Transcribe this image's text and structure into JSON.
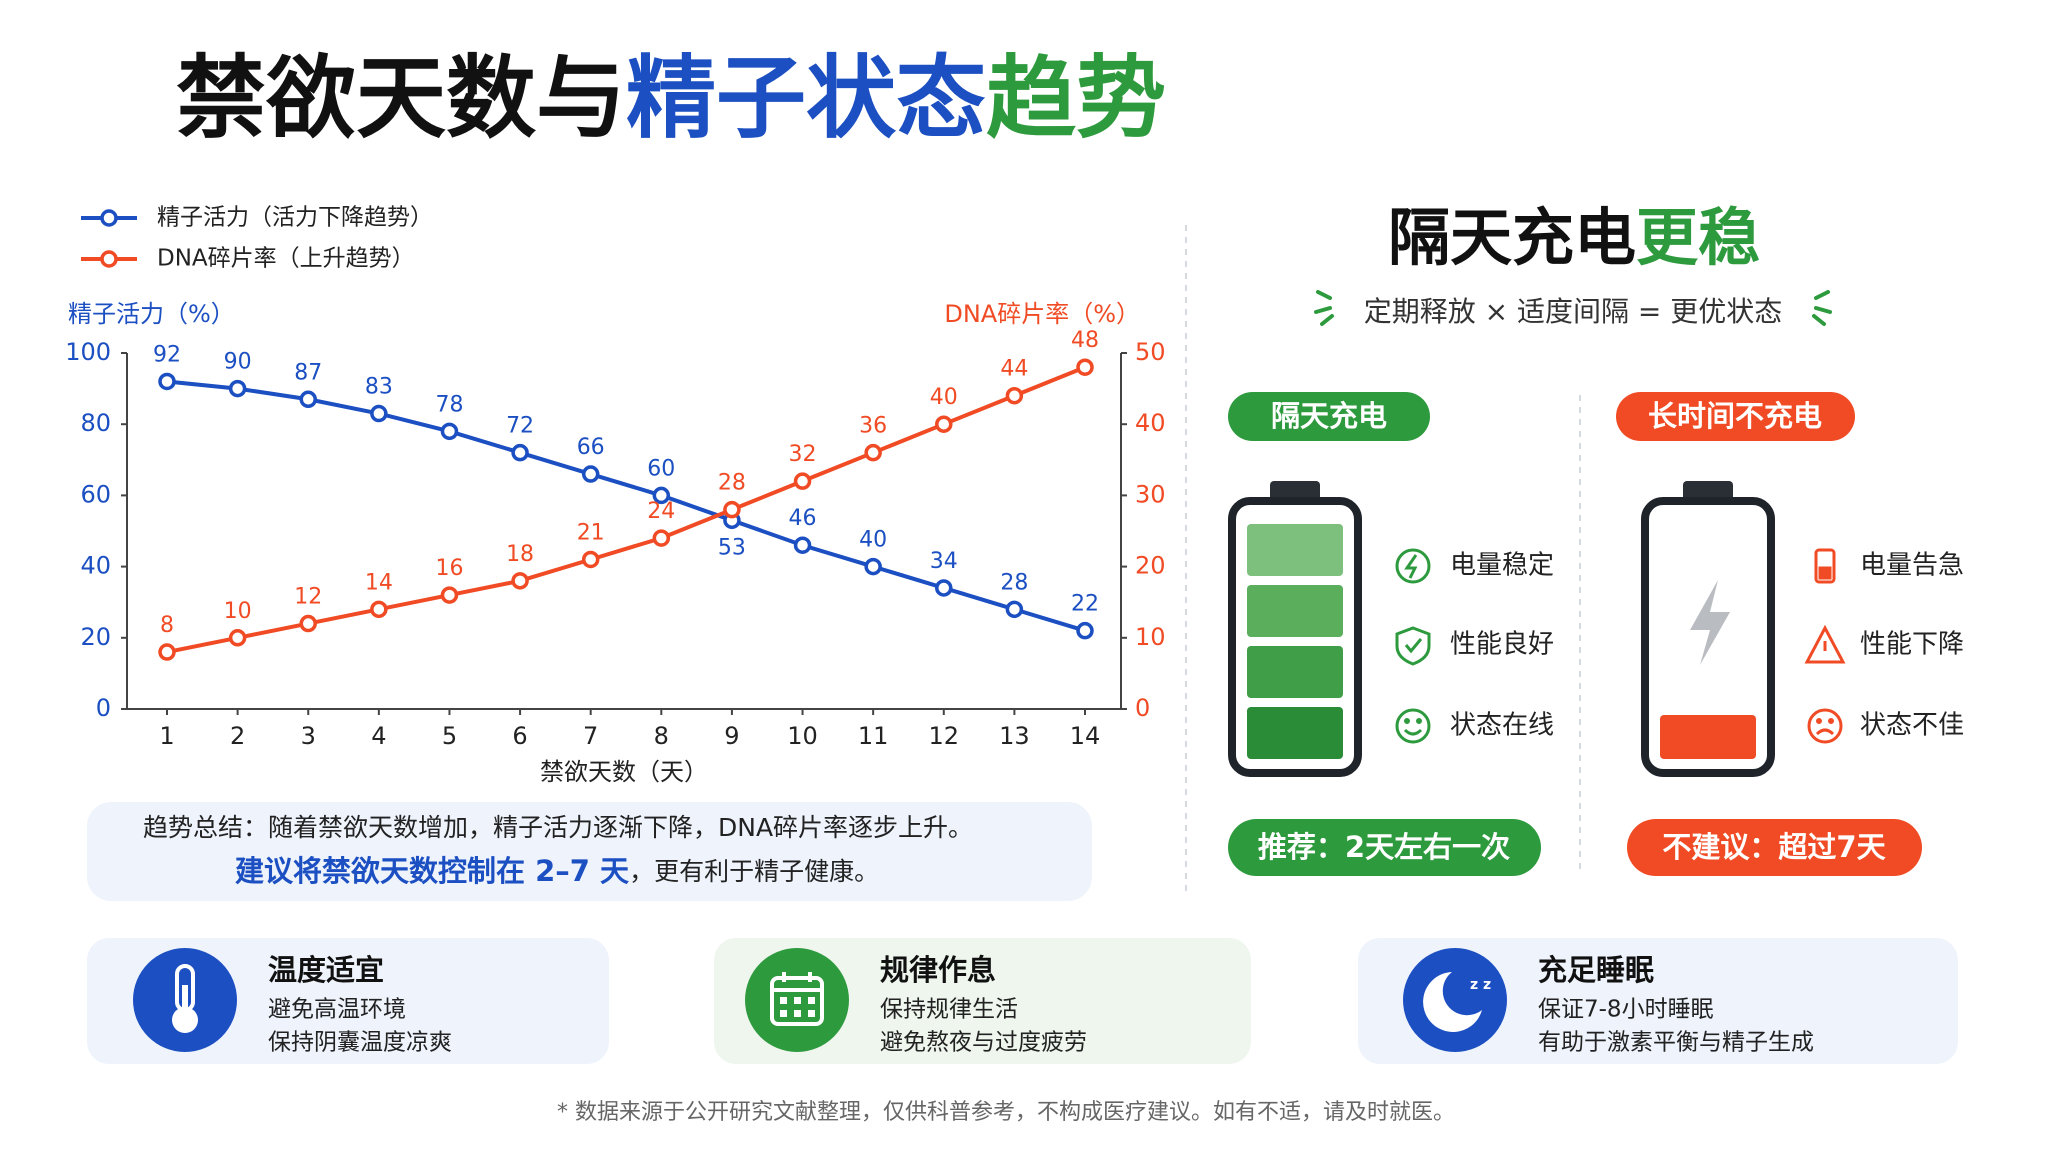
{
  "title": {
    "part1": "禁欲天数与",
    "part2": "精子状态",
    "part3": "趋势"
  },
  "chart_data": {
    "type": "line",
    "categories": [
      "1",
      "2",
      "3",
      "4",
      "5",
      "6",
      "7",
      "8",
      "9",
      "10",
      "11",
      "12",
      "13",
      "14"
    ],
    "series": [
      {
        "name": "精子活力（活力下降趋势）",
        "color": "#1b4fc2",
        "values": [
          92,
          90,
          87,
          83,
          78,
          72,
          66,
          60,
          53,
          46,
          40,
          34,
          28,
          22
        ]
      },
      {
        "name": "DNA碎片率（上升趋势）",
        "color": "#f04b24",
        "axis": "y2",
        "values": [
          8,
          10,
          12,
          14,
          16,
          18,
          21,
          24,
          28,
          32,
          36,
          40,
          44,
          48
        ]
      }
    ],
    "ylabel": "精子活力（%）",
    "y2label": "DNA碎片率（%）",
    "xlabel": "禁欲天数（天）",
    "ylim": [
      0,
      100
    ],
    "yticks": [
      0,
      20,
      40,
      60,
      80,
      100
    ],
    "y2lim": [
      0,
      50
    ],
    "y2ticks": [
      0,
      10,
      20,
      30,
      40,
      50
    ],
    "grid": false,
    "legend": "top-left"
  },
  "summary": {
    "line1": "趋势总结：随着禁欲天数增加，精子活力逐渐下降，DNA碎片率逐步上升。",
    "highlight": "建议将禁欲天数控制在 2–7 天",
    "rest": "，更有利于精子健康。"
  },
  "panel": {
    "title": "隔天充电",
    "title_accent": "更稳",
    "subtitle": "定期释放 × 适度间隔 = 更优状态",
    "good": {
      "label": "隔天充电",
      "items": [
        "电量稳定",
        "性能良好",
        "状态在线"
      ],
      "note": "推荐：2天左右一次"
    },
    "bad": {
      "label": "长时间不充电",
      "items": [
        "电量告急",
        "性能下降",
        "状态不佳"
      ],
      "note": "不建议：超过7天"
    }
  },
  "tips": [
    {
      "title": "温度适宜",
      "lines": [
        "避免高温环境",
        "保持阴囊温度凉爽"
      ]
    },
    {
      "title": "规律作息",
      "lines": [
        "保持规律生活",
        "避免熬夜与过度疲劳"
      ]
    },
    {
      "title": "充足睡眠",
      "lines": [
        "保证7-8小时睡眠",
        "有助于激素平衡与精子生成"
      ]
    }
  ],
  "footer": "* 数据来源于公开研究文献整理，仅供科普参考，不构成医疗建议。如有不适，请及时就医。"
}
